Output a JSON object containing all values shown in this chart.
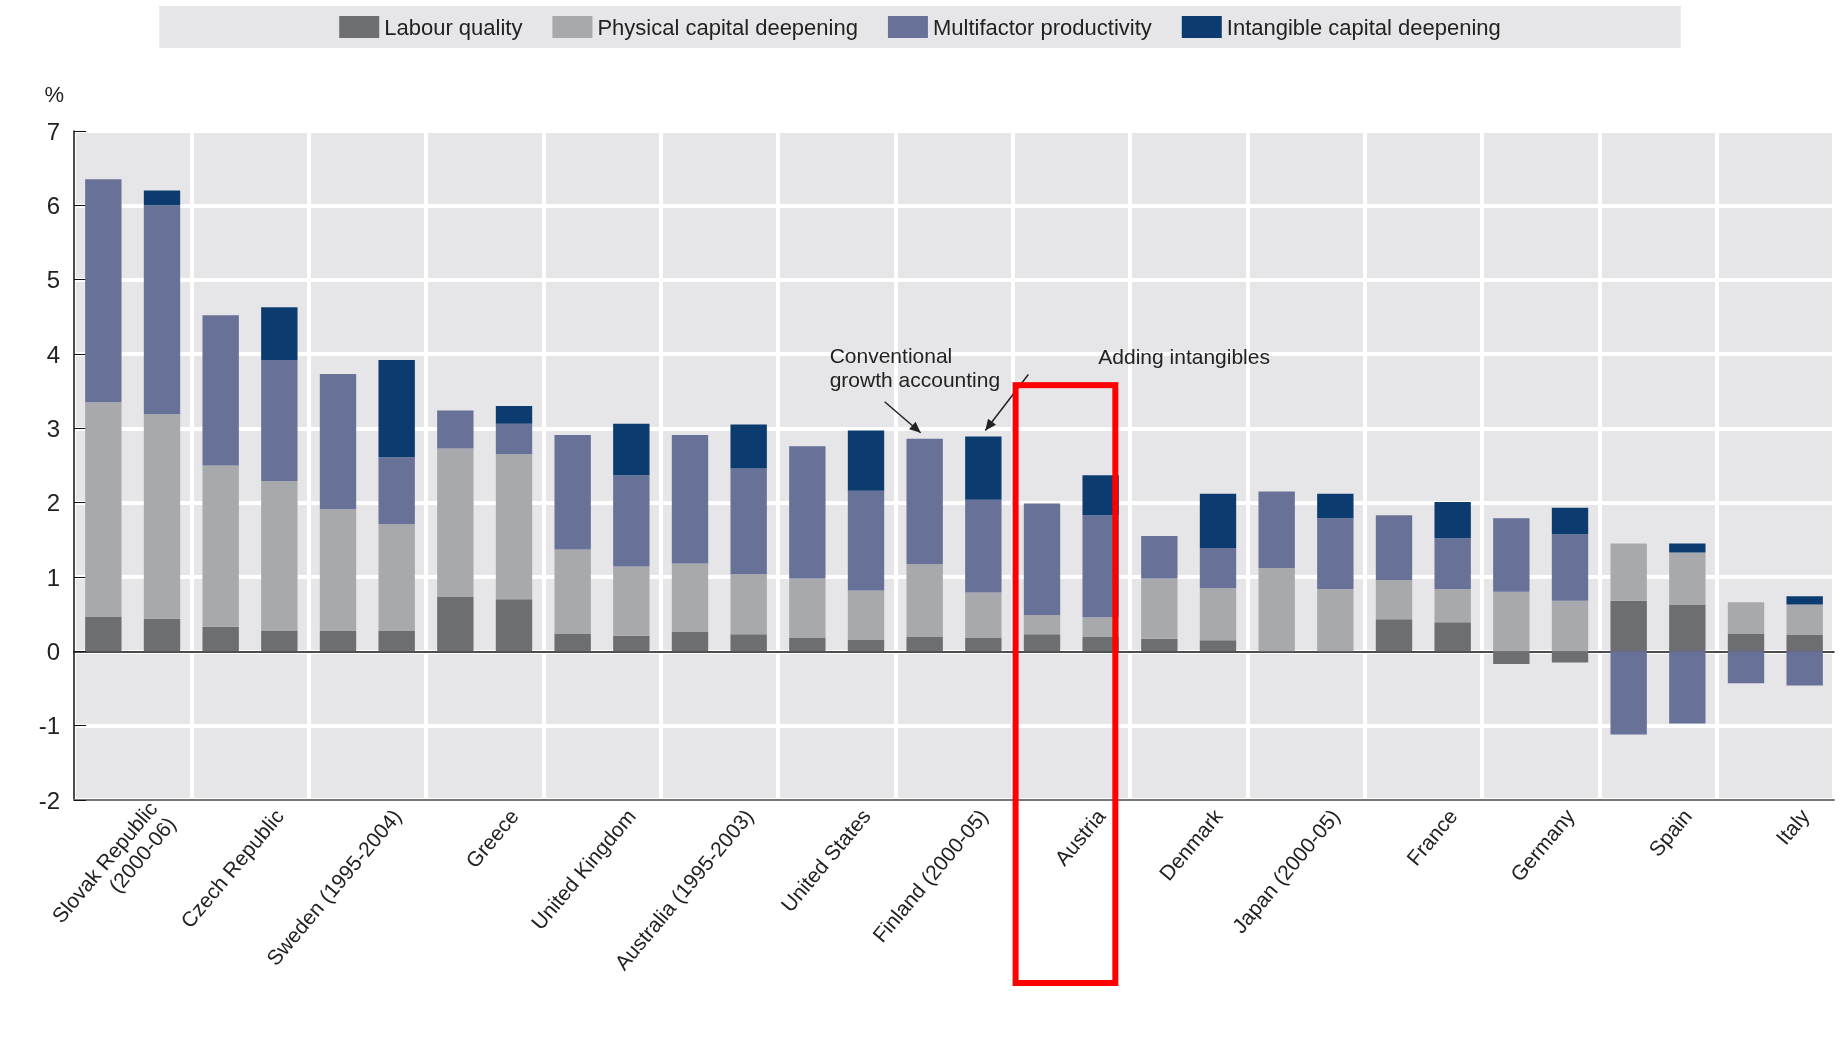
{
  "chart_data": {
    "type": "bar",
    "stacked": true,
    "ylabel": "%",
    "ylim": [
      -2,
      7
    ],
    "yticks": [
      -2,
      -1,
      0,
      1,
      2,
      3,
      4,
      5,
      6,
      7
    ],
    "grid": true,
    "legend": "top",
    "annotations": [
      "Conventional\ngrowth accounting",
      "Adding intangibles"
    ],
    "categories": [
      null,
      "Slovak Republic\n(2000-06)",
      null,
      "Czech Republic",
      null,
      "Sweden (1995-2004)",
      null,
      "Greece",
      null,
      "United Kingdom",
      null,
      "Australia (1995-2003)",
      null,
      "United States",
      null,
      "Finland (2000-05)",
      null,
      "Austria",
      null,
      "Denmark",
      null,
      "Japan (2000-05)",
      null,
      "France",
      null,
      "Germany",
      null,
      "Spain",
      null,
      "Italy"
    ],
    "series": [
      {
        "name": "Labour quality",
        "color": "#6d6e72",
        "values": [
          0.47,
          0.44,
          0.33,
          0.28,
          0.28,
          0.28,
          0.73,
          0.7,
          0.24,
          0.21,
          0.26,
          0.23,
          0.18,
          0.16,
          0.2,
          0.18,
          0.23,
          0.2,
          0.17,
          0.15,
          0,
          0,
          0.43,
          0.39,
          -0.17,
          -0.15,
          0.68,
          0.63,
          0.24,
          0.22
        ]
      },
      {
        "name": "Physical capital deepening",
        "color": "#a8a9ad",
        "values": [
          2.88,
          2.75,
          2.17,
          2.01,
          1.63,
          1.43,
          2.0,
          1.95,
          1.13,
          0.93,
          0.92,
          0.81,
          0.8,
          0.66,
          0.97,
          0.61,
          0.26,
          0.26,
          0.81,
          0.7,
          1.12,
          0.84,
          0.53,
          0.45,
          0.8,
          0.68,
          0.77,
          0.7,
          0.42,
          0.41
        ]
      },
      {
        "name": "Multifactor productivity",
        "color": "#687198",
        "values": [
          3.0,
          2.81,
          2.02,
          1.63,
          1.82,
          0.9,
          0.51,
          0.41,
          1.54,
          1.23,
          1.73,
          1.42,
          1.78,
          1.34,
          1.69,
          1.25,
          1.5,
          1.37,
          0.57,
          0.54,
          1.03,
          0.95,
          0.87,
          0.68,
          0.99,
          0.9,
          -1.12,
          -0.97,
          -0.43,
          -0.46
        ]
      },
      {
        "name": "Intangible capital deepening",
        "color": "#0c3b6f",
        "values": [
          null,
          0.2,
          null,
          0.71,
          null,
          1.31,
          null,
          0.24,
          null,
          0.69,
          null,
          0.59,
          null,
          0.81,
          null,
          0.85,
          null,
          0.54,
          null,
          0.73,
          null,
          0.33,
          null,
          0.49,
          null,
          0.35,
          null,
          0.12,
          null,
          0.11
        ]
      }
    ]
  }
}
